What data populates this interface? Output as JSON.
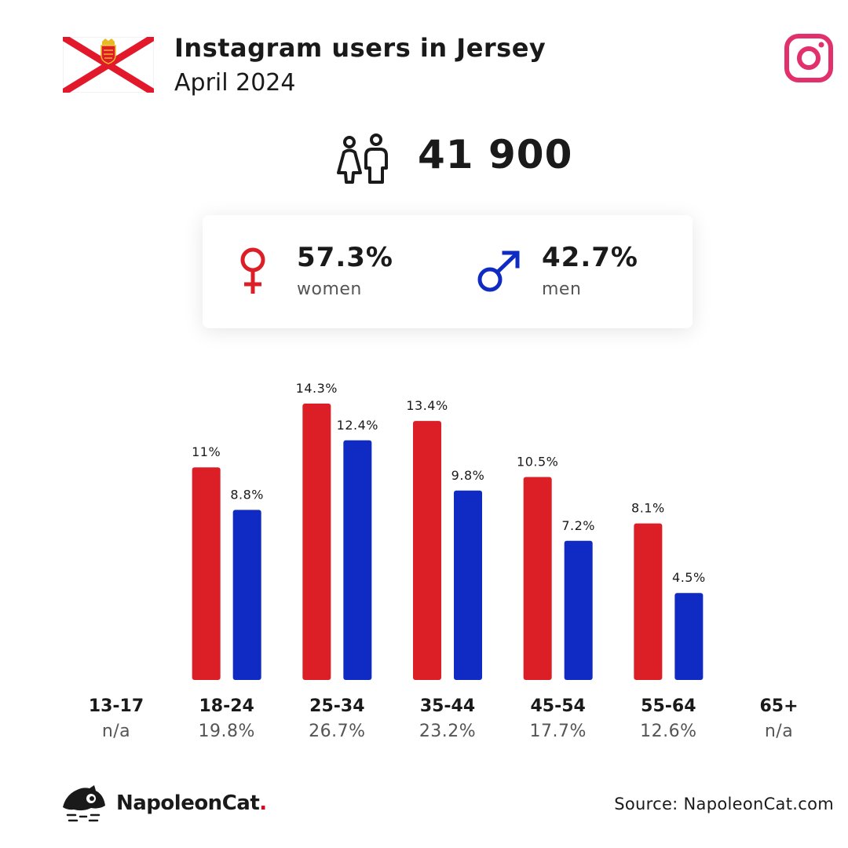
{
  "header": {
    "title": "Instagram users in Jersey",
    "subtitle": "April 2024"
  },
  "total_users": "41 900",
  "gender": {
    "female": {
      "pct": "57.3%",
      "label": "women",
      "color": "#dc1f26"
    },
    "male": {
      "pct": "42.7%",
      "label": "men",
      "color": "#0f2bc3"
    }
  },
  "chart_data": {
    "type": "bar",
    "categories": [
      "13-17",
      "18-24",
      "25-34",
      "35-44",
      "45-54",
      "55-64",
      "65+"
    ],
    "category_totals": [
      "n/a",
      "19.8%",
      "26.7%",
      "23.2%",
      "17.7%",
      "12.6%",
      "n/a"
    ],
    "series": [
      {
        "name": "women",
        "color": "#dc1f26",
        "values": [
          null,
          11,
          14.3,
          13.4,
          10.5,
          8.1,
          null
        ],
        "labels": [
          "",
          "11%",
          "14.3%",
          "13.4%",
          "10.5%",
          "8.1%",
          ""
        ]
      },
      {
        "name": "men",
        "color": "#0f2bc3",
        "values": [
          null,
          8.8,
          12.4,
          9.8,
          7.2,
          4.5,
          null
        ],
        "labels": [
          "",
          "8.8%",
          "12.4%",
          "9.8%",
          "7.2%",
          "4.5%",
          ""
        ]
      }
    ],
    "ylim": [
      0,
      14.3
    ],
    "grid": false,
    "legend": "none"
  },
  "footer": {
    "brand": "NapoleonCat",
    "brand_dot": ".",
    "source": "Source: NapoleonCat.com"
  },
  "icons": {
    "flag": "jersey-flag-icon",
    "instagram": "instagram-icon",
    "people": "people-icon",
    "female": "female-symbol-icon",
    "male": "male-symbol-icon",
    "logo": "napoleoncat-logo-icon"
  }
}
